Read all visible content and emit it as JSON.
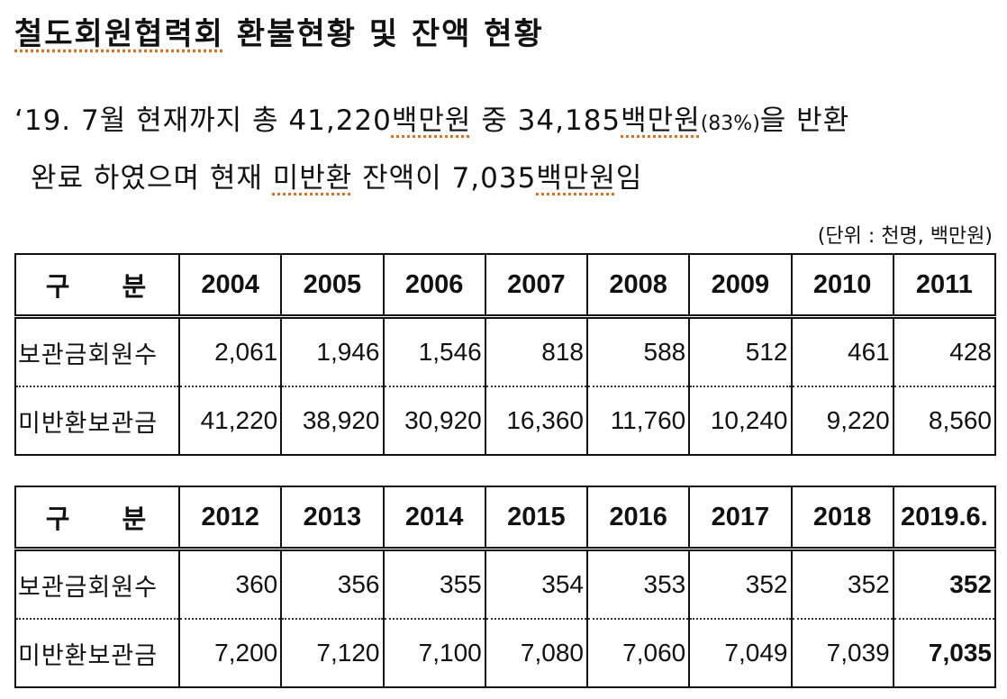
{
  "title": {
    "prefix": "철도회원협력회",
    "rest": " 환불현황 및 잔액 현황"
  },
  "paragraph": {
    "line1": {
      "p1": "‘19. 7월 현재까지 총 41,220",
      "u1": "백만원",
      "p2": " 중 34,185",
      "u2": "백만원",
      "pct": "(83%)",
      "p3": "을 반환"
    },
    "line2": {
      "p1": "완료 하였으며 현재 ",
      "u1": "미반환",
      "p2": " 잔액이 7,035",
      "u2": "백만원",
      "p3": "임"
    }
  },
  "unit_note": "(단위 : 천명, 백만원)",
  "table1": {
    "header_label": "구 분",
    "years": [
      "2004",
      "2005",
      "2006",
      "2007",
      "2008",
      "2009",
      "2010",
      "2011"
    ],
    "rows": [
      {
        "label": "보관금회원수",
        "values": [
          "2,061",
          "1,946",
          "1,546",
          "818",
          "588",
          "512",
          "461",
          "428"
        ]
      },
      {
        "label": "미반환보관금",
        "values": [
          "41,220",
          "38,920",
          "30,920",
          "16,360",
          "11,760",
          "10,240",
          "9,220",
          "8,560"
        ]
      }
    ]
  },
  "table2": {
    "header_label": "구 분",
    "years": [
      "2012",
      "2013",
      "2014",
      "2015",
      "2016",
      "2017",
      "2018",
      "2019.6."
    ],
    "rows": [
      {
        "label": "보관금회원수",
        "values": [
          "360",
          "356",
          "355",
          "354",
          "353",
          "352",
          "352",
          "352"
        ]
      },
      {
        "label": "미반환보관금",
        "values": [
          "7,200",
          "7,120",
          "7,100",
          "7,080",
          "7,060",
          "7,049",
          "7,039",
          "7,035"
        ]
      }
    ]
  },
  "colors": {
    "text": "#111111",
    "spellcheck_underline": "#d4722a"
  }
}
